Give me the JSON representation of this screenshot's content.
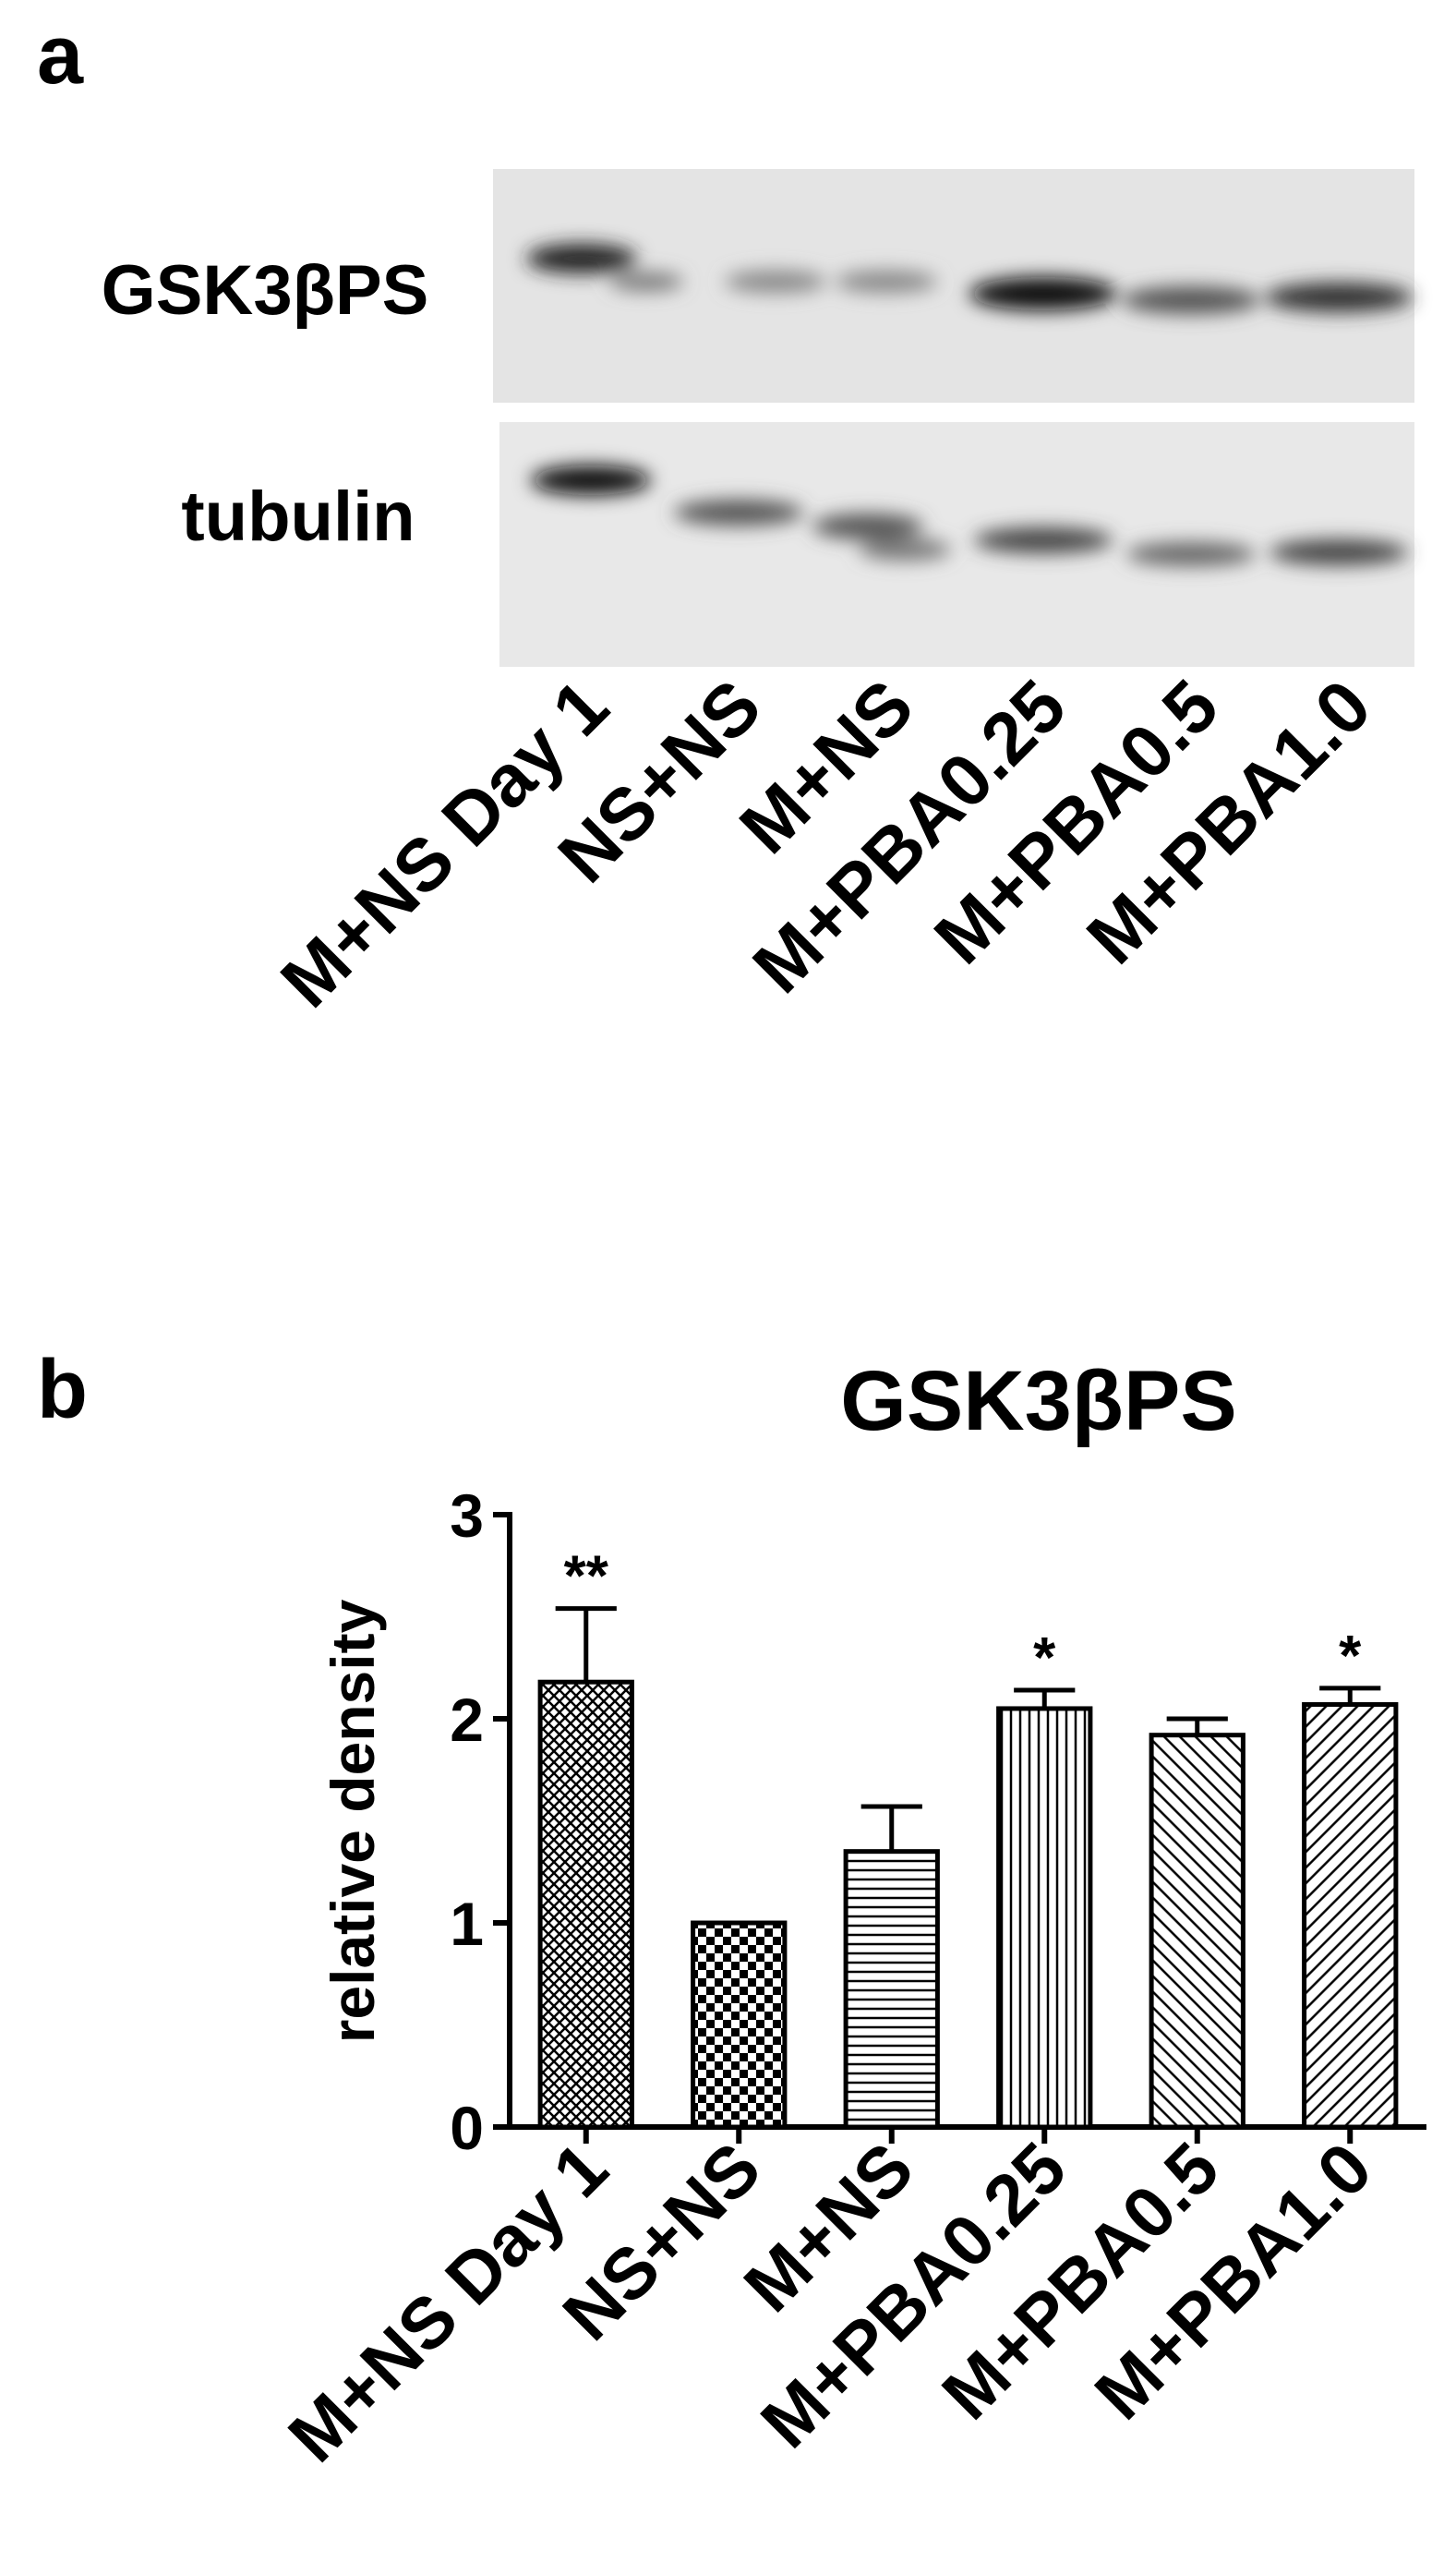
{
  "panel_a": {
    "label": "a",
    "rows": [
      "GSK3βPS",
      "tubulin"
    ],
    "lanes": [
      "M+NS Day 1",
      "NS+NS",
      "M+NS",
      "M+PBA0.25",
      "M+PBA0.5",
      "M+PBA1.0"
    ]
  },
  "chart_data": {
    "type": "bar",
    "panel_label": "b",
    "title": "GSK3βPS",
    "ylabel": "relative density",
    "categories": [
      "M+NS Day 1",
      "NS+NS",
      "M+NS",
      "M+PBA0.25",
      "M+PBA0.5",
      "M+PBA1.0"
    ],
    "values": [
      2.18,
      1.0,
      1.35,
      2.05,
      1.92,
      2.07
    ],
    "errors": [
      0.36,
      0,
      0.22,
      0.09,
      0.08,
      0.08
    ],
    "significance": [
      "**",
      null,
      null,
      "*",
      null,
      "*"
    ],
    "patterns": [
      "crosshatch",
      "checker",
      "horizontal",
      "vertical",
      "diagonal-right",
      "diagonal-left"
    ],
    "color": "#000000",
    "ylim": [
      0,
      3
    ],
    "yticks": [
      0,
      1,
      2,
      3
    ]
  }
}
